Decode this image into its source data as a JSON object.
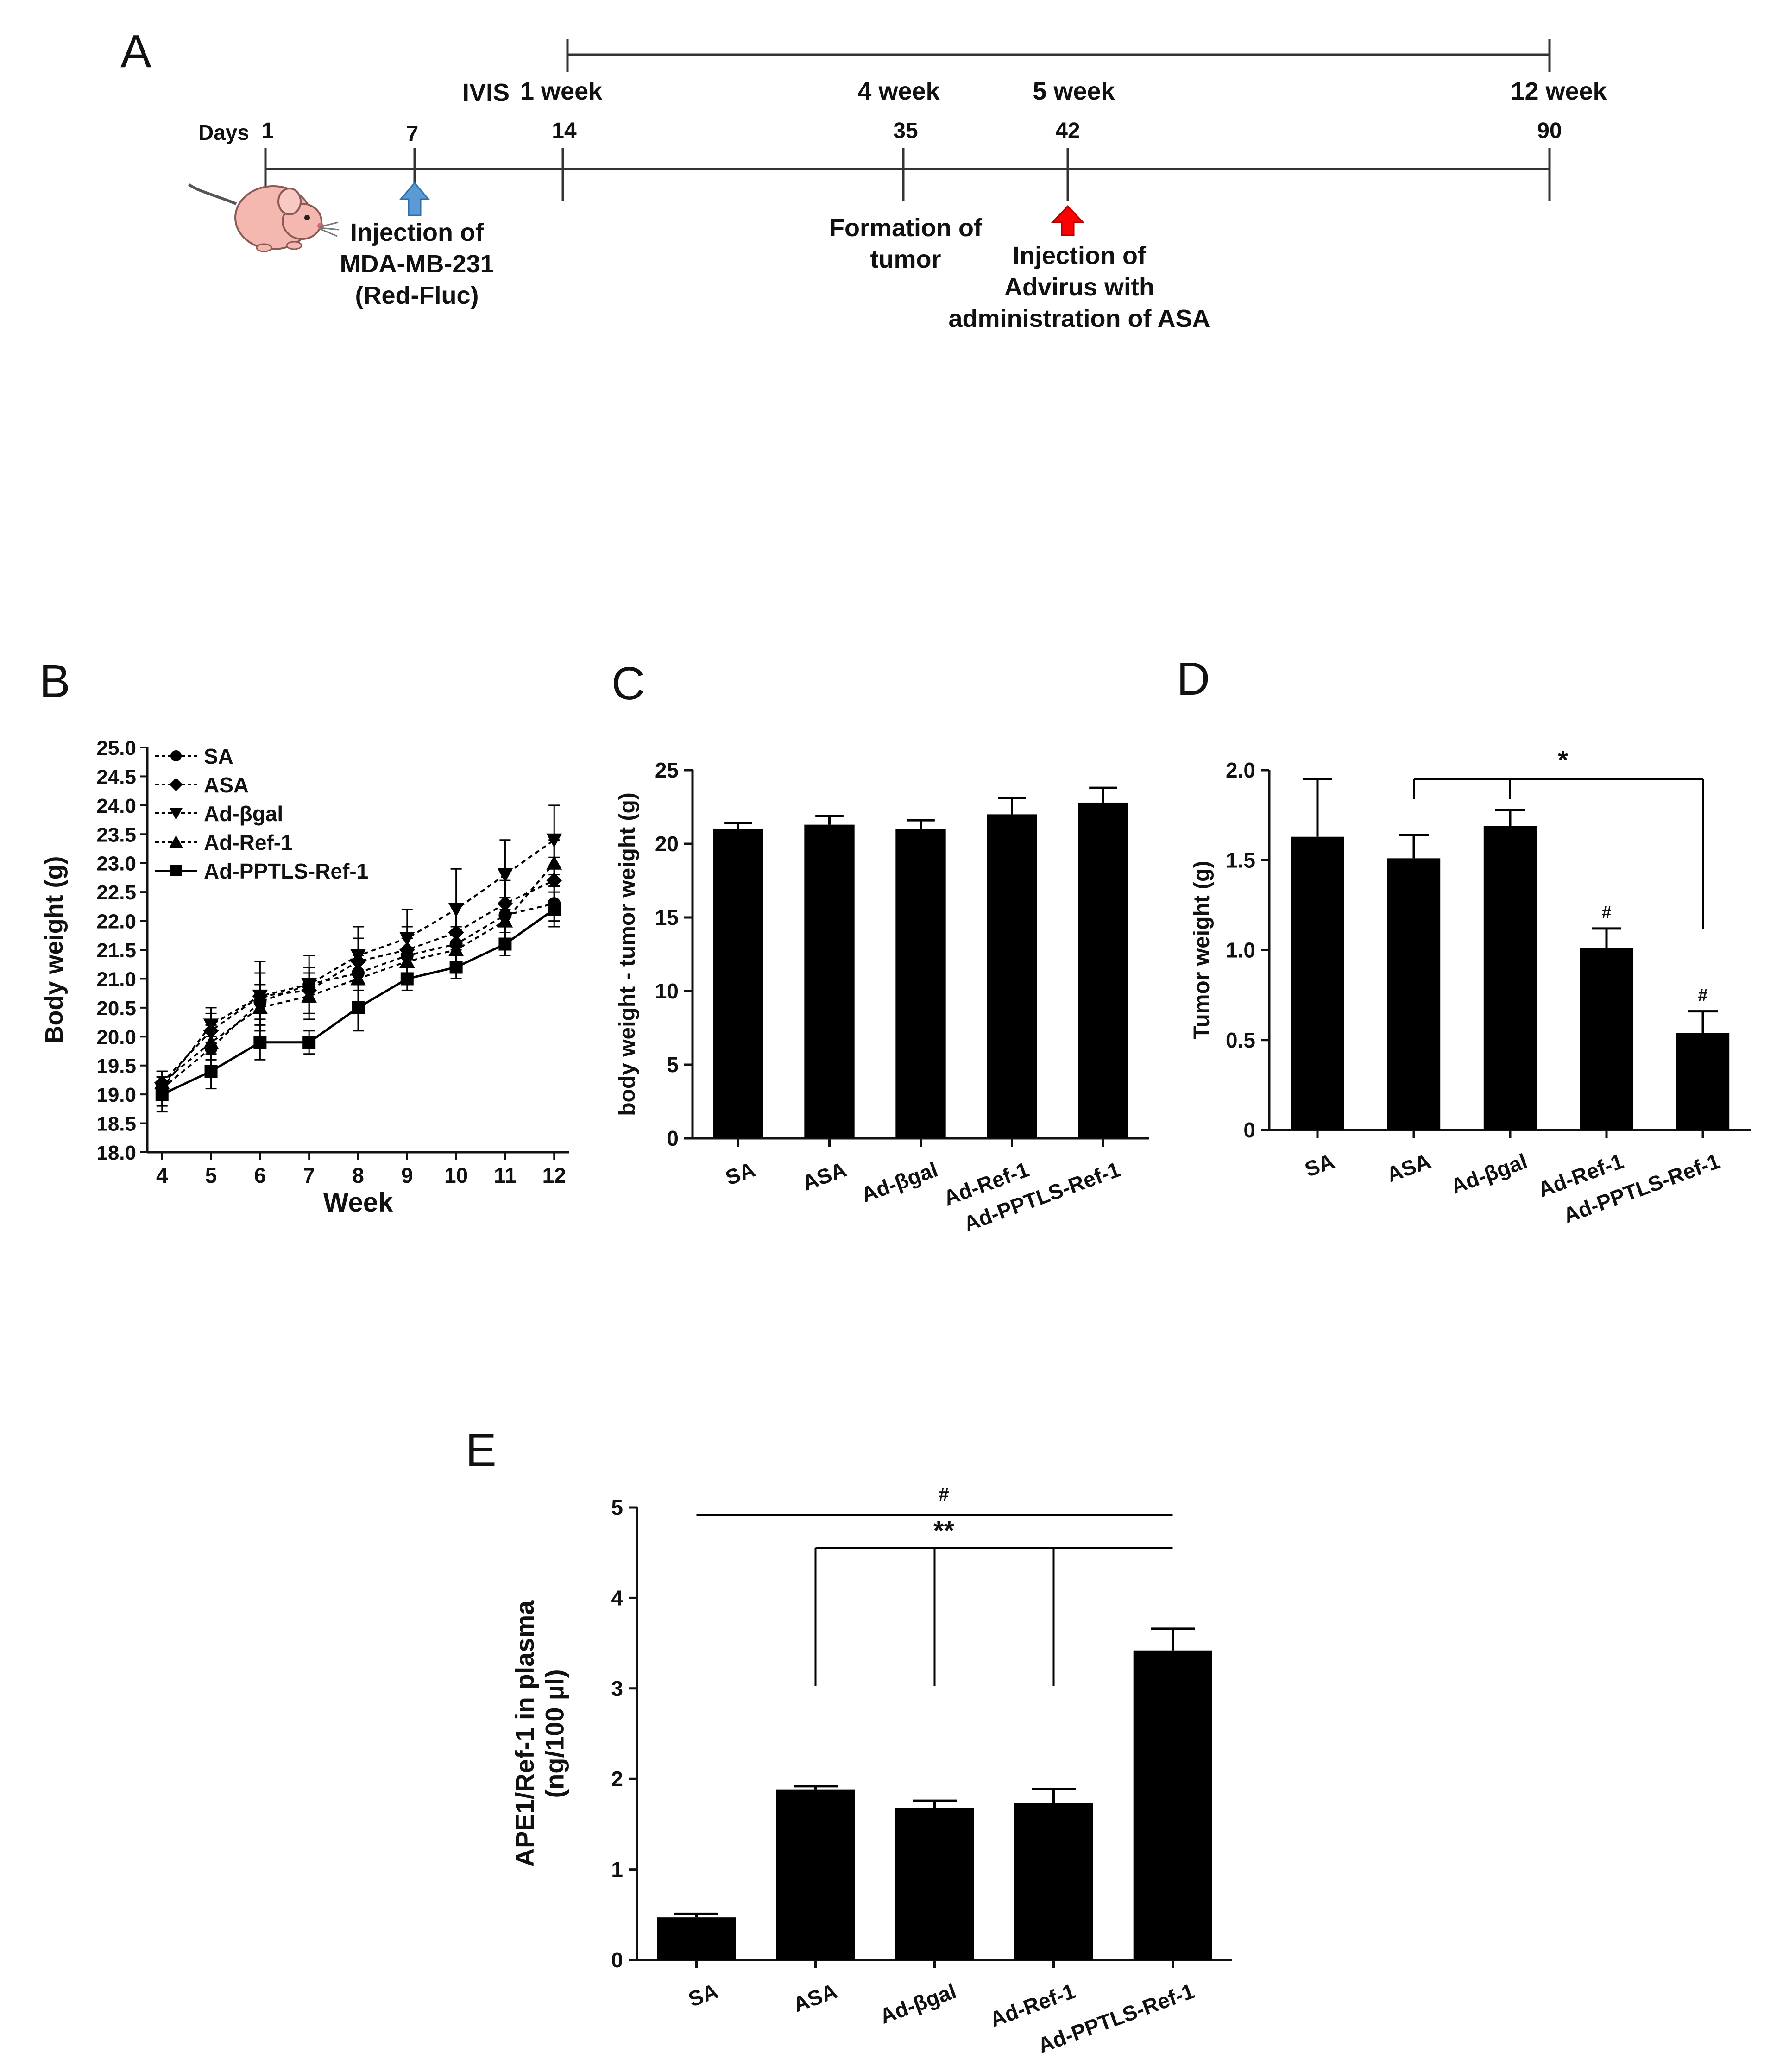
{
  "timeline": {
    "panel_label": "A",
    "days_label": "Days",
    "ivis_label": "IVIS",
    "days": [
      "1",
      "7",
      "14",
      "35",
      "42",
      "90"
    ],
    "weeks": [
      "1 week",
      "4 week",
      "5 week",
      "12 week"
    ],
    "annotations": {
      "inj1": [
        "Injection of",
        "MDA-MB-231",
        "(Red-Fluc)"
      ],
      "tumor": [
        "Formation of",
        "tumor"
      ],
      "inj2": [
        "Injection of",
        "Advirus with",
        "administration of ASA"
      ]
    },
    "colors": {
      "blue_arrow": "#5b9bd5",
      "red_arrow": "#ff0000",
      "mouse": "#f4b8b0"
    }
  },
  "chart_data": [
    {
      "panel": "B",
      "type": "line",
      "xlabel": "Week",
      "ylabel": "Body weight (g)",
      "xlim": [
        3.7,
        12.3
      ],
      "ylim": [
        18.0,
        25.0
      ],
      "x": [
        4,
        5,
        6,
        7,
        8,
        9,
        10,
        11,
        12
      ],
      "x_ticks": [
        "4",
        "5",
        "6",
        "7",
        "8",
        "9",
        "10",
        "11",
        "12"
      ],
      "y_ticks": [
        "18.0",
        "18.5",
        "19.0",
        "19.5",
        "20.0",
        "20.5",
        "21.0",
        "21.5",
        "22.0",
        "22.5",
        "23.0",
        "23.5",
        "24.0",
        "24.5",
        "25.0"
      ],
      "series": [
        {
          "name": "SA",
          "marker": "circle",
          "values": [
            19.1,
            19.8,
            20.6,
            20.9,
            21.1,
            21.4,
            21.6,
            22.1,
            22.3
          ],
          "errors": [
            0.2,
            0.2,
            0.3,
            0.3,
            0.3,
            0.3,
            0.3,
            0.3,
            0.3
          ]
        },
        {
          "name": "ASA",
          "marker": "diamond",
          "values": [
            19.2,
            20.1,
            20.7,
            20.8,
            21.3,
            21.5,
            21.8,
            22.3,
            22.7
          ],
          "errors": [
            0.2,
            0.3,
            0.4,
            0.4,
            0.4,
            0.4,
            0.5,
            0.4,
            0.4
          ]
        },
        {
          "name": "Ad-βgal",
          "marker": "triangle-down",
          "values": [
            19.1,
            20.2,
            20.7,
            20.9,
            21.4,
            21.7,
            22.2,
            22.8,
            23.4
          ],
          "errors": [
            0.3,
            0.3,
            0.6,
            0.5,
            0.5,
            0.5,
            0.7,
            0.6,
            0.6
          ]
        },
        {
          "name": "Ad-Ref-1",
          "marker": "triangle-up",
          "values": [
            19.2,
            19.9,
            20.5,
            20.7,
            21.0,
            21.3,
            21.5,
            22.0,
            23.0
          ],
          "errors": [
            0.2,
            0.3,
            0.4,
            0.4,
            0.4,
            0.4,
            0.4,
            0.4,
            0.4
          ]
        },
        {
          "name": "Ad-PPTLS-Ref-1",
          "marker": "square",
          "values": [
            19.0,
            19.4,
            19.9,
            19.9,
            20.5,
            21.0,
            21.2,
            21.6,
            22.2
          ],
          "errors": [
            0.3,
            0.3,
            0.3,
            0.2,
            0.4,
            0.2,
            0.2,
            0.2,
            0.3
          ]
        }
      ]
    },
    {
      "panel": "C",
      "type": "bar",
      "ylabel": "body weight - tumor weight (g)",
      "ylim": [
        0,
        25
      ],
      "y_ticks": [
        "0",
        "5",
        "10",
        "15",
        "20",
        "25"
      ],
      "categories": [
        "SA",
        "ASA",
        "Ad-βgal",
        "Ad-Ref-1",
        "Ad-PPTLS-Ref-1"
      ],
      "values": [
        21.0,
        21.3,
        21.0,
        22.0,
        22.8
      ],
      "errors": [
        0.4,
        0.6,
        0.6,
        1.1,
        1.0
      ]
    },
    {
      "panel": "D",
      "type": "bar",
      "ylabel": "Tumor weight (g)",
      "ylim": [
        0,
        2.0
      ],
      "y_ticks": [
        "0",
        "0.5",
        "1.0",
        "1.5",
        "2.0"
      ],
      "categories": [
        "SA",
        "ASA",
        "Ad-βgal",
        "Ad-Ref-1",
        "Ad-PPTLS-Ref-1"
      ],
      "values": [
        1.63,
        1.51,
        1.69,
        1.01,
        0.54
      ],
      "errors": [
        0.32,
        0.13,
        0.09,
        0.11,
        0.12
      ],
      "bar_labels": [
        "",
        "",
        "",
        "#",
        "#"
      ],
      "significance": "*"
    },
    {
      "panel": "E",
      "type": "bar",
      "ylabel": "APE1/Ref-1 in plasma (ng/100 µl)",
      "ylabel_lines": [
        "APE1/Ref-1 in plasma",
        "(ng/100 µl)"
      ],
      "ylim": [
        0,
        5
      ],
      "y_ticks": [
        "0",
        "1",
        "2",
        "3",
        "4",
        "5"
      ],
      "categories": [
        "SA",
        "ASA",
        "Ad-βgal",
        "Ad-Ref-1",
        "Ad-PPTLS-Ref-1"
      ],
      "values": [
        0.47,
        1.88,
        1.68,
        1.73,
        3.42
      ],
      "errors": [
        0.04,
        0.04,
        0.08,
        0.16,
        0.24
      ],
      "significance": [
        "#",
        "**"
      ]
    }
  ]
}
